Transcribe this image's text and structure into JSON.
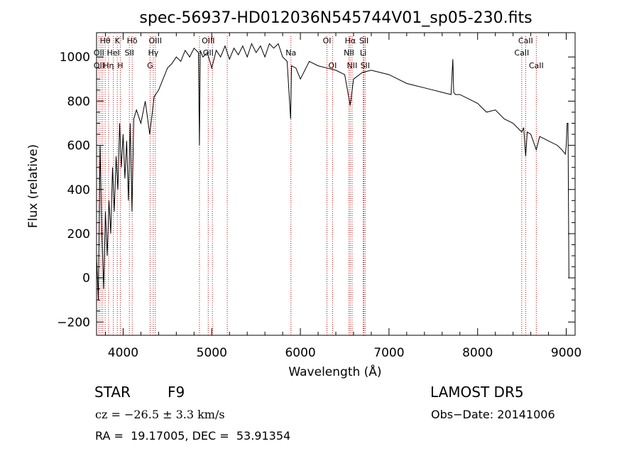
{
  "chart_data": {
    "type": "line",
    "title": "spec-56937-HD012036N545744V01_sp05-230.fits",
    "xlabel": "Wavelength (Å)",
    "ylabel": "Flux (relative)",
    "xlim": [
      3700,
      9100
    ],
    "ylim": [
      -260,
      1110
    ],
    "xticks": [
      4000,
      5000,
      6000,
      7000,
      8000,
      9000
    ],
    "yticks": [
      -200,
      0,
      200,
      400,
      600,
      800,
      1000
    ],
    "grid": false,
    "series": [
      {
        "x": [
          3700,
          3720,
          3740,
          3760,
          3780,
          3800,
          3820,
          3840,
          3860,
          3880,
          3900,
          3920,
          3940,
          3960,
          3980,
          4000,
          4020,
          4040,
          4060,
          4080,
          4100,
          4120,
          4150,
          4200,
          4250,
          4300,
          4350,
          4400,
          4450,
          4500,
          4550,
          4600,
          4650,
          4700,
          4750,
          4800,
          4850,
          4861,
          4870,
          4900,
          4950,
          5000,
          5050,
          5100,
          5150,
          5200,
          5250,
          5300,
          5350,
          5400,
          5450,
          5500,
          5550,
          5600,
          5650,
          5700,
          5750,
          5800,
          5850,
          5890,
          5900,
          5950,
          6000,
          6100,
          6200,
          6300,
          6400,
          6500,
          6563,
          6600,
          6700,
          6800,
          6900,
          7000,
          7100,
          7200,
          7300,
          7400,
          7500,
          7600,
          7700,
          7720,
          7730,
          7750,
          7800,
          7900,
          7950,
          8000,
          8100,
          8200,
          8300,
          8400,
          8498,
          8520,
          8542,
          8560,
          8600,
          8662,
          8700,
          8800,
          8900,
          8950,
          8990,
          9000,
          9010,
          9020,
          9030
        ],
        "y": [
          100,
          -100,
          600,
          200,
          -50,
          300,
          100,
          350,
          200,
          500,
          300,
          550,
          400,
          700,
          500,
          650,
          450,
          620,
          350,
          700,
          300,
          720,
          760,
          700,
          800,
          650,
          820,
          850,
          900,
          950,
          970,
          1000,
          980,
          1030,
          1000,
          1040,
          1020,
          600,
          1030,
          1000,
          1020,
          950,
          1030,
          1000,
          1050,
          990,
          1040,
          1010,
          1050,
          1000,
          1060,
          1020,
          1050,
          1000,
          1060,
          1040,
          1060,
          1000,
          980,
          720,
          960,
          950,
          900,
          980,
          960,
          950,
          940,
          920,
          780,
          900,
          930,
          940,
          930,
          920,
          900,
          880,
          870,
          860,
          850,
          840,
          830,
          990,
          840,
          830,
          830,
          810,
          800,
          790,
          750,
          760,
          720,
          700,
          660,
          680,
          550,
          660,
          650,
          580,
          640,
          620,
          600,
          580,
          560,
          600,
          700,
          700,
          0
        ],
        "note": "approximate"
      }
    ],
    "spectral_lines": [
      {
        "label": "Hθ",
        "x": 3797,
        "row": 0
      },
      {
        "label": "K",
        "x": 3934,
        "row": 0
      },
      {
        "label": "Hδ",
        "x": 4102,
        "row": 0
      },
      {
        "label": "OIII",
        "x": 4363,
        "row": 0
      },
      {
        "label": "OIII",
        "x": 4960,
        "row": 0
      },
      {
        "label": "OI",
        "x": 6300,
        "row": 0
      },
      {
        "label": "Hα",
        "x": 6563,
        "row": 0
      },
      {
        "label": "SII",
        "x": 6717,
        "row": 0
      },
      {
        "label": "CaII",
        "x": 8542,
        "row": 0
      },
      {
        "label": "OII",
        "x": 3727,
        "row": 1
      },
      {
        "label": "HeI",
        "x": 3889,
        "row": 1
      },
      {
        "label": "SII",
        "x": 4070,
        "row": 1
      },
      {
        "label": "Hγ",
        "x": 4340,
        "row": 1
      },
      {
        "label": "OII",
        "x": 4960,
        "row": 1
      },
      {
        "label": "Na",
        "x": 5893,
        "row": 1
      },
      {
        "label": "NII",
        "x": 6548,
        "row": 1
      },
      {
        "label": "Li",
        "x": 6708,
        "row": 1
      },
      {
        "label": "CaII",
        "x": 8498,
        "row": 1
      },
      {
        "label": "OII",
        "x": 3727,
        "row": 2
      },
      {
        "label": "Hη",
        "x": 3835,
        "row": 2
      },
      {
        "label": "H",
        "x": 3968,
        "row": 2
      },
      {
        "label": "G",
        "x": 4304,
        "row": 2
      },
      {
        "label": "OI",
        "x": 6363,
        "row": 2
      },
      {
        "label": "NII",
        "x": 6583,
        "row": 2
      },
      {
        "label": "SII",
        "x": 6731,
        "row": 2
      },
      {
        "label": "CaII",
        "x": 8662,
        "row": 2
      }
    ],
    "line_markers_x": [
      3727,
      3750,
      3770,
      3797,
      3835,
      3889,
      3934,
      3968,
      4070,
      4102,
      4304,
      4340,
      4363,
      4861,
      4960,
      5007,
      5175,
      5893,
      6300,
      6363,
      6548,
      6563,
      6583,
      6708,
      6717,
      6731,
      8498,
      8542,
      8662
    ]
  },
  "info": {
    "object_class": "STAR",
    "subclass": "F9",
    "survey": "LAMOST DR5",
    "cz": "cz = −26.5 ± 3.3 km/s",
    "obs_date": "Obs−Date: 20141006",
    "coords": "RA =  19.17005, DEC =  53.91354"
  }
}
